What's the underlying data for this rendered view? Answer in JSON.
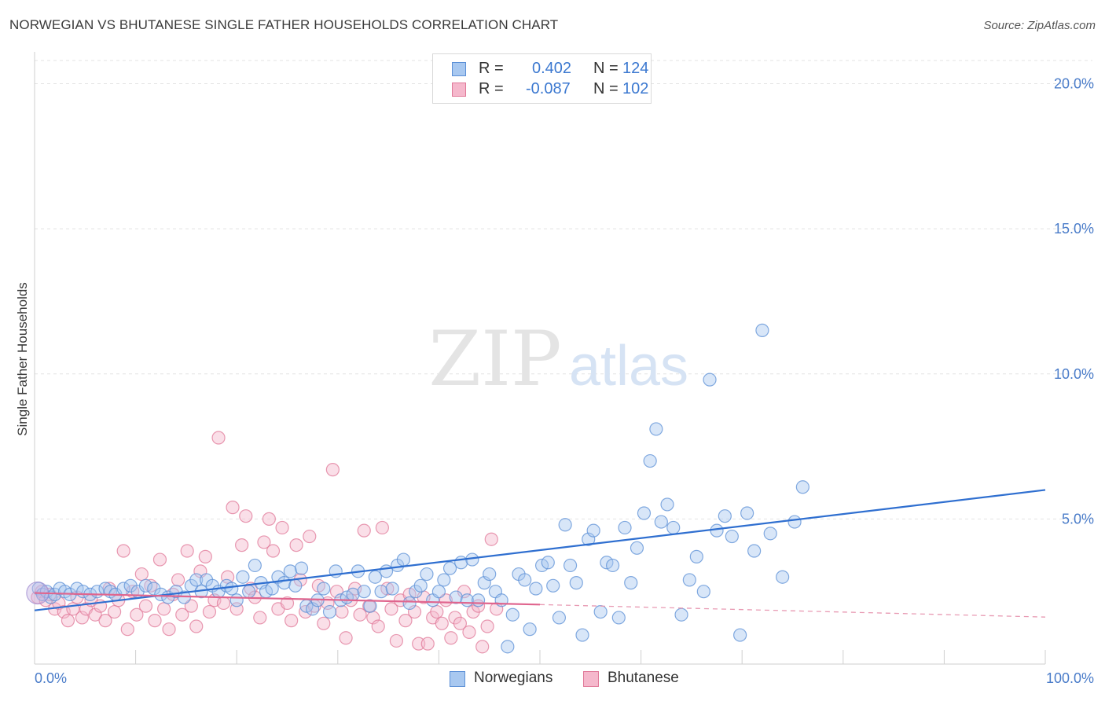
{
  "title": "NORWEGIAN VS BHUTANESE SINGLE FATHER HOUSEHOLDS CORRELATION CHART",
  "source": "Source: ZipAtlas.com",
  "watermark": {
    "part1": "ZIP",
    "part2": "atlas"
  },
  "legend": {
    "rows": [
      {
        "r_label": "R =",
        "r_value": "0.402",
        "n_label": "N =",
        "n_value": "124",
        "color": "#a8c8f0",
        "stroke": "#5b8fd6"
      },
      {
        "r_label": "R =",
        "r_value": "-0.087",
        "n_label": "N =",
        "n_value": "102",
        "color": "#f5b8cc",
        "stroke": "#e07898"
      }
    ]
  },
  "bottom_legend": [
    {
      "label": "Norwegians",
      "color": "#a8c8f0",
      "stroke": "#5b8fd6"
    },
    {
      "label": "Bhutanese",
      "color": "#f5b8cc",
      "stroke": "#e07898"
    }
  ],
  "chart_data": {
    "type": "scatter",
    "ylabel": "Single Father Households",
    "xlabel": "",
    "xlim": [
      0,
      100
    ],
    "ylim": [
      0,
      20.8
    ],
    "x_tick_labels": [
      "0.0%",
      "100.0%"
    ],
    "y_ticks": [
      5,
      10,
      15,
      20
    ],
    "y_tick_labels": [
      "5.0%",
      "10.0%",
      "15.0%",
      "20.0%"
    ],
    "grid": true,
    "series": [
      {
        "name": "Norwegians",
        "color": "#5b8fd6",
        "fill": "#a8c8f0",
        "trend": {
          "x": [
            0,
            100
          ],
          "y": [
            1.85,
            6.0
          ]
        },
        "points": [
          [
            0.4,
            2.6
          ],
          [
            0.8,
            2.4
          ],
          [
            1.2,
            2.5
          ],
          [
            1.6,
            2.3
          ],
          [
            2.0,
            2.4
          ],
          [
            2.5,
            2.6
          ],
          [
            3.0,
            2.5
          ],
          [
            3.5,
            2.4
          ],
          [
            4.2,
            2.6
          ],
          [
            4.8,
            2.5
          ],
          [
            5.5,
            2.4
          ],
          [
            6.2,
            2.5
          ],
          [
            7.0,
            2.6
          ],
          [
            7.5,
            2.5
          ],
          [
            8.0,
            2.4
          ],
          [
            8.8,
            2.6
          ],
          [
            9.5,
            2.7
          ],
          [
            10.2,
            2.5
          ],
          [
            11.0,
            2.7
          ],
          [
            11.8,
            2.6
          ],
          [
            12.5,
            2.4
          ],
          [
            13.2,
            2.3
          ],
          [
            14.0,
            2.5
          ],
          [
            14.8,
            2.3
          ],
          [
            15.5,
            2.7
          ],
          [
            16.0,
            2.9
          ],
          [
            16.5,
            2.5
          ],
          [
            17.0,
            2.9
          ],
          [
            17.6,
            2.7
          ],
          [
            18.2,
            2.5
          ],
          [
            19.0,
            2.7
          ],
          [
            19.5,
            2.6
          ],
          [
            20.0,
            2.2
          ],
          [
            20.6,
            3.0
          ],
          [
            21.2,
            2.5
          ],
          [
            21.8,
            3.4
          ],
          [
            22.4,
            2.8
          ],
          [
            22.9,
            2.5
          ],
          [
            23.5,
            2.6
          ],
          [
            24.1,
            3.0
          ],
          [
            24.7,
            2.8
          ],
          [
            25.3,
            3.2
          ],
          [
            25.8,
            2.7
          ],
          [
            26.4,
            3.3
          ],
          [
            26.9,
            2.0
          ],
          [
            27.5,
            1.9
          ],
          [
            28.0,
            2.2
          ],
          [
            28.6,
            2.6
          ],
          [
            29.2,
            1.8
          ],
          [
            29.8,
            3.2
          ],
          [
            30.3,
            2.2
          ],
          [
            30.9,
            2.3
          ],
          [
            31.5,
            2.4
          ],
          [
            32.0,
            3.2
          ],
          [
            32.6,
            2.5
          ],
          [
            33.2,
            2.0
          ],
          [
            33.7,
            3.0
          ],
          [
            34.3,
            2.5
          ],
          [
            34.8,
            3.2
          ],
          [
            35.4,
            2.6
          ],
          [
            35.9,
            3.4
          ],
          [
            36.5,
            3.6
          ],
          [
            37.1,
            2.1
          ],
          [
            37.7,
            2.5
          ],
          [
            38.2,
            2.7
          ],
          [
            38.8,
            3.1
          ],
          [
            39.4,
            2.2
          ],
          [
            40.0,
            2.5
          ],
          [
            40.5,
            2.9
          ],
          [
            41.1,
            3.3
          ],
          [
            41.7,
            2.3
          ],
          [
            42.2,
            3.5
          ],
          [
            42.8,
            2.2
          ],
          [
            43.3,
            3.6
          ],
          [
            43.9,
            2.2
          ],
          [
            44.5,
            2.8
          ],
          [
            45.0,
            3.1
          ],
          [
            45.6,
            2.5
          ],
          [
            46.2,
            2.2
          ],
          [
            46.8,
            0.6
          ],
          [
            47.3,
            1.7
          ],
          [
            47.9,
            3.1
          ],
          [
            48.5,
            2.9
          ],
          [
            49.0,
            1.2
          ],
          [
            49.6,
            2.6
          ],
          [
            50.2,
            3.4
          ],
          [
            50.8,
            3.5
          ],
          [
            51.3,
            2.7
          ],
          [
            51.9,
            1.6
          ],
          [
            52.5,
            4.8
          ],
          [
            53.0,
            3.4
          ],
          [
            53.6,
            2.8
          ],
          [
            54.2,
            1.0
          ],
          [
            54.8,
            4.3
          ],
          [
            55.3,
            4.6
          ],
          [
            56.0,
            1.8
          ],
          [
            56.6,
            3.5
          ],
          [
            57.2,
            3.4
          ],
          [
            57.8,
            1.6
          ],
          [
            58.4,
            4.7
          ],
          [
            59.0,
            2.8
          ],
          [
            59.6,
            4.0
          ],
          [
            60.3,
            5.2
          ],
          [
            60.9,
            7.0
          ],
          [
            61.5,
            8.1
          ],
          [
            62.0,
            4.9
          ],
          [
            62.6,
            5.5
          ],
          [
            63.2,
            4.7
          ],
          [
            64.0,
            1.7
          ],
          [
            64.8,
            2.9
          ],
          [
            65.5,
            3.7
          ],
          [
            66.2,
            2.5
          ],
          [
            66.8,
            9.8
          ],
          [
            67.5,
            4.6
          ],
          [
            68.3,
            5.1
          ],
          [
            69.0,
            4.4
          ],
          [
            69.8,
            1.0
          ],
          [
            70.5,
            5.2
          ],
          [
            71.2,
            3.9
          ],
          [
            72.0,
            11.5
          ],
          [
            72.8,
            4.5
          ],
          [
            74.0,
            3.0
          ],
          [
            75.2,
            4.9
          ],
          [
            76.0,
            6.1
          ]
        ]
      },
      {
        "name": "Bhutanese",
        "color": "#e07898",
        "fill": "#f5b8cc",
        "trend": {
          "x": [
            0,
            50
          ],
          "y": [
            2.45,
            2.05
          ]
        },
        "trend_dashed": {
          "x": [
            50,
            100
          ],
          "y": [
            2.05,
            1.62
          ]
        },
        "points": [
          [
            0.3,
            2.3
          ],
          [
            0.7,
            2.5
          ],
          [
            1.1,
            2.2
          ],
          [
            1.5,
            2.4
          ],
          [
            2.0,
            1.9
          ],
          [
            2.4,
            2.1
          ],
          [
            2.9,
            1.8
          ],
          [
            3.3,
            1.5
          ],
          [
            3.8,
            1.9
          ],
          [
            4.2,
            2.3
          ],
          [
            4.7,
            1.6
          ],
          [
            5.1,
            1.9
          ],
          [
            5.6,
            2.2
          ],
          [
            6.0,
            1.7
          ],
          [
            6.5,
            2.0
          ],
          [
            7.0,
            1.5
          ],
          [
            7.4,
            2.6
          ],
          [
            7.9,
            1.8
          ],
          [
            8.3,
            2.2
          ],
          [
            8.8,
            3.9
          ],
          [
            9.2,
            1.2
          ],
          [
            9.7,
            2.5
          ],
          [
            10.1,
            1.7
          ],
          [
            10.6,
            3.1
          ],
          [
            11.0,
            2.0
          ],
          [
            11.5,
            2.7
          ],
          [
            11.9,
            1.5
          ],
          [
            12.4,
            3.6
          ],
          [
            12.8,
            1.9
          ],
          [
            13.3,
            1.2
          ],
          [
            13.7,
            2.4
          ],
          [
            14.2,
            2.9
          ],
          [
            14.6,
            1.7
          ],
          [
            15.1,
            3.9
          ],
          [
            15.5,
            2.0
          ],
          [
            16.0,
            1.3
          ],
          [
            16.4,
            3.2
          ],
          [
            16.9,
            3.7
          ],
          [
            17.3,
            1.8
          ],
          [
            17.8,
            2.2
          ],
          [
            18.2,
            7.8
          ],
          [
            18.7,
            2.1
          ],
          [
            19.1,
            3.0
          ],
          [
            19.6,
            5.4
          ],
          [
            20.0,
            1.9
          ],
          [
            20.5,
            4.1
          ],
          [
            20.9,
            5.1
          ],
          [
            21.4,
            2.6
          ],
          [
            21.8,
            2.3
          ],
          [
            22.3,
            1.6
          ],
          [
            22.7,
            4.2
          ],
          [
            23.2,
            5.0
          ],
          [
            23.6,
            3.9
          ],
          [
            24.1,
            1.9
          ],
          [
            24.5,
            4.7
          ],
          [
            25.0,
            2.1
          ],
          [
            25.4,
            1.5
          ],
          [
            25.9,
            4.1
          ],
          [
            26.3,
            2.9
          ],
          [
            26.8,
            1.8
          ],
          [
            27.2,
            4.4
          ],
          [
            27.7,
            2.0
          ],
          [
            28.1,
            2.7
          ],
          [
            28.6,
            1.4
          ],
          [
            29.0,
            2.1
          ],
          [
            29.5,
            6.7
          ],
          [
            29.9,
            2.5
          ],
          [
            30.4,
            1.8
          ],
          [
            30.8,
            0.9
          ],
          [
            31.3,
            2.2
          ],
          [
            31.7,
            2.6
          ],
          [
            32.2,
            1.7
          ],
          [
            32.6,
            4.6
          ],
          [
            33.1,
            2.0
          ],
          [
            33.5,
            1.6
          ],
          [
            34.0,
            1.3
          ],
          [
            34.4,
            4.7
          ],
          [
            34.9,
            2.6
          ],
          [
            35.3,
            1.9
          ],
          [
            35.8,
            0.8
          ],
          [
            36.2,
            2.2
          ],
          [
            36.7,
            1.5
          ],
          [
            37.1,
            2.4
          ],
          [
            37.6,
            1.8
          ],
          [
            38.0,
            0.7
          ],
          [
            38.5,
            2.3
          ],
          [
            38.9,
            0.7
          ],
          [
            39.4,
            1.6
          ],
          [
            39.8,
            1.8
          ],
          [
            40.3,
            1.4
          ],
          [
            40.7,
            2.2
          ],
          [
            41.2,
            0.9
          ],
          [
            41.6,
            1.6
          ],
          [
            42.1,
            1.4
          ],
          [
            42.5,
            2.5
          ],
          [
            43.0,
            1.1
          ],
          [
            43.4,
            1.8
          ],
          [
            43.9,
            2.0
          ],
          [
            44.3,
            0.6
          ],
          [
            44.8,
            1.3
          ],
          [
            45.2,
            4.3
          ],
          [
            45.7,
            1.9
          ]
        ]
      }
    ]
  }
}
